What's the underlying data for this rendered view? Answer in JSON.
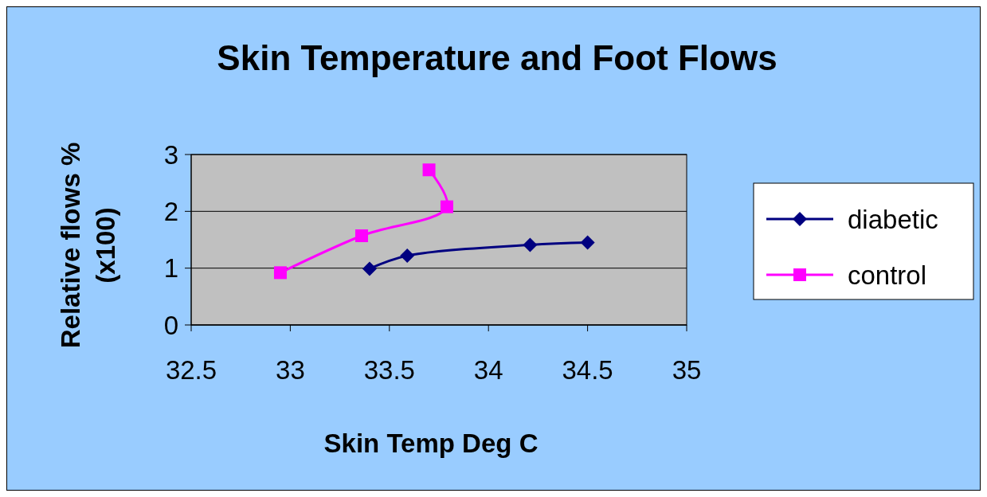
{
  "chart_data": {
    "type": "line",
    "title": "Skin Temperature and Foot Flows",
    "xlabel": "Skin Temp Deg C",
    "ylabel": "Relative flows % (x100)",
    "xlim": [
      32.5,
      35
    ],
    "xticks": [
      32.5,
      33,
      33.5,
      34,
      34.5,
      35
    ],
    "ylim": [
      0,
      3
    ],
    "yticks": [
      0,
      1,
      2,
      3
    ],
    "grid": "y",
    "legend": "right",
    "series": [
      {
        "name": "diabetic",
        "color": "#000080",
        "marker": "diamond",
        "x": [
          33.4,
          33.59,
          34.21,
          34.5
        ],
        "values": [
          0.99,
          1.22,
          1.41,
          1.45
        ]
      },
      {
        "name": "control",
        "color": "#ff00ff",
        "marker": "square",
        "x": [
          32.95,
          33.36,
          33.79,
          33.7
        ],
        "values": [
          0.92,
          1.57,
          2.08,
          2.73
        ]
      }
    ]
  }
}
